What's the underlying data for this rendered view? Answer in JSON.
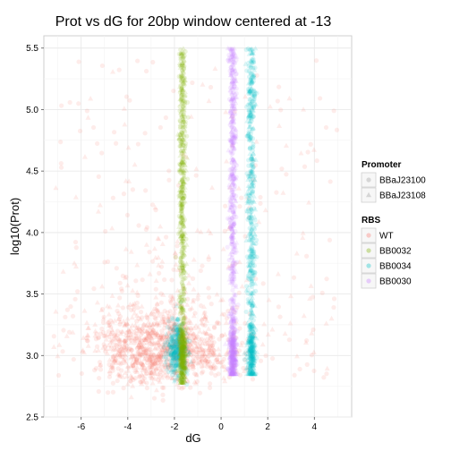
{
  "chart_data": {
    "type": "scatter",
    "title": "Prot vs dG for 20bp window centered at -13",
    "xlabel": "dG",
    "ylabel": "log10(Prot)",
    "xlim": [
      -7.6,
      5.6
    ],
    "ylim": [
      2.5,
      5.6
    ],
    "x_ticks": [
      -6,
      -4,
      -2,
      0,
      2,
      4
    ],
    "y_ticks": [
      2.5,
      3.0,
      3.5,
      4.0,
      4.5,
      5.0,
      5.5
    ],
    "y_tick_labels": [
      "2.5",
      "3.0",
      "3.5",
      "4.0",
      "4.5",
      "5.0",
      "5.5"
    ],
    "x_tick_labels": [
      "-6",
      "-4",
      "-2",
      "0",
      "2",
      "4"
    ],
    "grid": true,
    "legend_position": "right",
    "legends": [
      {
        "title": "Promoter",
        "entries": [
          {
            "label": "BBaJ23100",
            "shape": "circle"
          },
          {
            "label": "BBaJ23108",
            "shape": "triangle"
          }
        ]
      },
      {
        "title": "RBS",
        "entries": [
          {
            "label": "WT",
            "color": "#F8766D"
          },
          {
            "label": "BB0032",
            "color": "#7CAE00"
          },
          {
            "label": "BB0034",
            "color": "#00BFC4"
          },
          {
            "label": "BB0030",
            "color": "#C77CFF"
          }
        ]
      }
    ],
    "series": [
      {
        "name": "WT",
        "color": "#F8766D",
        "x_center": -2.5,
        "x_spread": 2.2,
        "y_center": 3.05,
        "y_spread": 0.15,
        "scattered_range": [
          -7.2,
          5.2
        ],
        "points": 1400
      },
      {
        "name": "BB0034",
        "color": "#00BFC4",
        "x_center": 1.3,
        "x_spread": 0.15,
        "y_range": [
          2.85,
          5.5
        ],
        "points": 700
      },
      {
        "name": "BB0034",
        "color": "#00BFC4",
        "x_center": -1.9,
        "x_spread": 0.2,
        "y_center": 3.05,
        "y_spread": 0.12,
        "points": 350
      },
      {
        "name": "BB0030",
        "color": "#C77CFF",
        "x_center": 0.5,
        "x_spread": 0.13,
        "y_range": [
          2.85,
          5.5
        ],
        "points": 800
      },
      {
        "name": "BB0032",
        "color": "#7CAE00",
        "x_center": -1.65,
        "x_spread": 0.12,
        "y_range": [
          2.78,
          5.5
        ],
        "points": 800
      }
    ]
  }
}
